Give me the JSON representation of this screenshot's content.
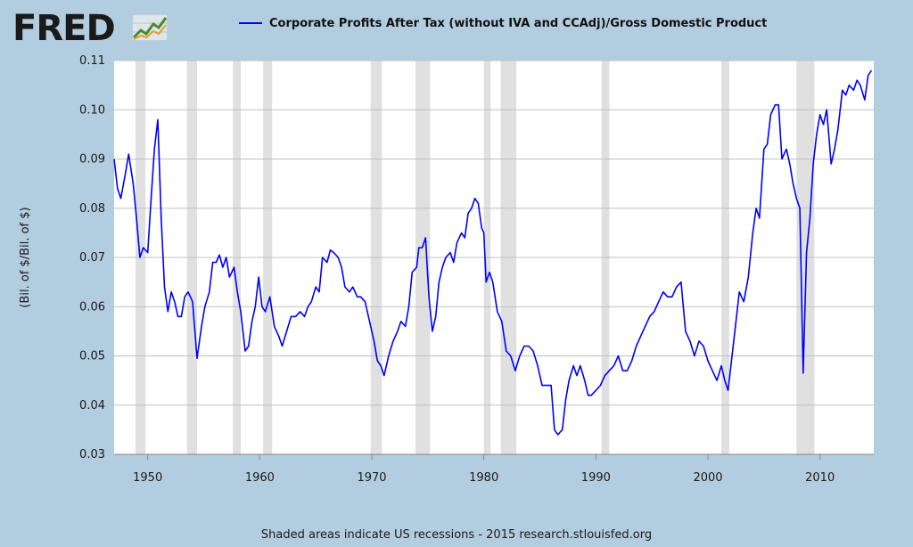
{
  "logo": {
    "text": "FRED",
    "icon": "fred-graph-icon"
  },
  "colors": {
    "background": "#b3cde0",
    "plot": "#ffffff",
    "line": "#0000ff",
    "recession": "#e0e0e0",
    "grid": "#c0c0c0"
  },
  "footer": {
    "text": "Shaded areas indicate US recessions - 2015 research.stlouisfed.org"
  },
  "chart_data": {
    "type": "line",
    "title": "",
    "xlabel": "",
    "ylabel": "(Bil. of $/Bil. of $)",
    "xlim": [
      1947,
      2014.8
    ],
    "ylim": [
      0.03,
      0.11
    ],
    "grid": true,
    "legend_position": "top",
    "x_ticks": [
      1950,
      1960,
      1970,
      1980,
      1990,
      2000,
      2010
    ],
    "y_ticks": [
      0.03,
      0.04,
      0.05,
      0.06,
      0.07,
      0.08,
      0.09,
      0.1,
      0.11
    ],
    "y_tick_labels": [
      "0.03",
      "0.04",
      "0.05",
      "0.06",
      "0.07",
      "0.08",
      "0.09",
      "0.10",
      "0.11"
    ],
    "recessions": [
      [
        1948.9,
        1949.8
      ],
      [
        1953.5,
        1954.4
      ],
      [
        1957.6,
        1958.3
      ],
      [
        1960.3,
        1961.1
      ],
      [
        1969.9,
        1970.9
      ],
      [
        1973.9,
        1975.2
      ],
      [
        1980.0,
        1980.6
      ],
      [
        1981.5,
        1982.9
      ],
      [
        1990.5,
        1991.2
      ],
      [
        2001.2,
        2001.9
      ],
      [
        2007.9,
        2009.5
      ]
    ],
    "series": [
      {
        "name": "Corporate Profits After Tax (without IVA and CCAdj)/Gross Domestic Product",
        "color": "#0000ff",
        "x": [
          1947,
          1947.3,
          1947.6,
          1948.0,
          1948.3,
          1948.7,
          1949.0,
          1949.3,
          1949.6,
          1950.0,
          1950.3,
          1950.6,
          1950.9,
          1951.2,
          1951.5,
          1951.8,
          1952.1,
          1952.4,
          1952.7,
          1953.0,
          1953.3,
          1953.6,
          1953.8,
          1954.0,
          1954.4,
          1954.8,
          1955.1,
          1955.5,
          1955.8,
          1956.1,
          1956.4,
          1956.7,
          1957.0,
          1957.3,
          1957.7,
          1958.0,
          1958.3,
          1958.7,
          1959.0,
          1959.3,
          1959.6,
          1959.9,
          1960.2,
          1960.5,
          1960.9,
          1961.3,
          1961.7,
          1962.0,
          1962.4,
          1962.8,
          1963.2,
          1963.6,
          1964.0,
          1964.3,
          1964.6,
          1965.0,
          1965.3,
          1965.6,
          1966.0,
          1966.3,
          1966.6,
          1967.0,
          1967.3,
          1967.6,
          1968.0,
          1968.3,
          1968.7,
          1969.0,
          1969.4,
          1969.8,
          1970.2,
          1970.5,
          1970.8,
          1971.1,
          1971.5,
          1971.9,
          1972.3,
          1972.6,
          1973.0,
          1973.3,
          1973.6,
          1974.0,
          1974.2,
          1974.5,
          1974.8,
          1975.1,
          1975.4,
          1975.7,
          1976.0,
          1976.3,
          1976.6,
          1977.0,
          1977.3,
          1977.6,
          1978.0,
          1978.3,
          1978.6,
          1978.9,
          1979.2,
          1979.5,
          1979.8,
          1980.0,
          1980.2,
          1980.5,
          1980.8,
          1981.2,
          1981.6,
          1982.0,
          1982.4,
          1982.8,
          1983.2,
          1983.6,
          1984.0,
          1984.4,
          1984.8,
          1985.2,
          1985.6,
          1986.0,
          1986.3,
          1986.6,
          1987.0,
          1987.3,
          1987.6,
          1988.0,
          1988.3,
          1988.6,
          1989.0,
          1989.3,
          1989.6,
          1990.0,
          1990.4,
          1990.8,
          1991.2,
          1991.6,
          1992.0,
          1992.4,
          1992.8,
          1993.2,
          1993.6,
          1994.0,
          1994.4,
          1994.8,
          1995.2,
          1995.6,
          1996.0,
          1996.4,
          1996.8,
          1997.2,
          1997.6,
          1998.0,
          1998.4,
          1998.8,
          1999.2,
          1999.6,
          2000.0,
          2000.4,
          2000.8,
          2001.2,
          2001.5,
          2001.8,
          2002.1,
          2002.4,
          2002.8,
          2003.2,
          2003.6,
          2004.0,
          2004.3,
          2004.6,
          2005.0,
          2005.3,
          2005.6,
          2006.0,
          2006.3,
          2006.6,
          2007.0,
          2007.3,
          2007.6,
          2007.9,
          2008.2,
          2008.5,
          2008.8,
          2009.1,
          2009.4,
          2009.7,
          2010.0,
          2010.3,
          2010.6,
          2011.0,
          2011.3,
          2011.6,
          2012.0,
          2012.3,
          2012.6,
          2013.0,
          2013.3,
          2013.6,
          2014.0,
          2014.3,
          2014.6
        ],
        "values": [
          0.09,
          0.084,
          0.082,
          0.087,
          0.091,
          0.085,
          0.078,
          0.07,
          0.072,
          0.071,
          0.082,
          0.092,
          0.098,
          0.078,
          0.064,
          0.059,
          0.063,
          0.061,
          0.058,
          0.058,
          0.062,
          0.063,
          0.062,
          0.061,
          0.0495,
          0.056,
          0.06,
          0.063,
          0.069,
          0.069,
          0.0705,
          0.068,
          0.07,
          0.066,
          0.068,
          0.063,
          0.059,
          0.051,
          0.052,
          0.057,
          0.06,
          0.066,
          0.06,
          0.059,
          0.062,
          0.056,
          0.054,
          0.052,
          0.055,
          0.058,
          0.058,
          0.059,
          0.058,
          0.06,
          0.061,
          0.064,
          0.063,
          0.07,
          0.069,
          0.0715,
          0.071,
          0.07,
          0.068,
          0.064,
          0.063,
          0.064,
          0.062,
          0.062,
          0.061,
          0.057,
          0.053,
          0.049,
          0.048,
          0.046,
          0.05,
          0.053,
          0.055,
          0.057,
          0.056,
          0.06,
          0.067,
          0.068,
          0.072,
          0.072,
          0.074,
          0.062,
          0.055,
          0.058,
          0.065,
          0.068,
          0.07,
          0.071,
          0.069,
          0.073,
          0.075,
          0.074,
          0.079,
          0.08,
          0.082,
          0.081,
          0.076,
          0.075,
          0.065,
          0.067,
          0.065,
          0.059,
          0.057,
          0.051,
          0.05,
          0.047,
          0.05,
          0.052,
          0.052,
          0.051,
          0.048,
          0.044,
          0.044,
          0.044,
          0.035,
          0.034,
          0.035,
          0.041,
          0.045,
          0.048,
          0.046,
          0.048,
          0.045,
          0.042,
          0.042,
          0.043,
          0.044,
          0.046,
          0.047,
          0.048,
          0.05,
          0.047,
          0.047,
          0.049,
          0.052,
          0.054,
          0.056,
          0.058,
          0.059,
          0.061,
          0.063,
          0.062,
          0.062,
          0.064,
          0.065,
          0.055,
          0.053,
          0.05,
          0.053,
          0.052,
          0.049,
          0.047,
          0.045,
          0.048,
          0.045,
          0.043,
          0.049,
          0.055,
          0.063,
          0.061,
          0.066,
          0.075,
          0.08,
          0.078,
          0.092,
          0.093,
          0.099,
          0.101,
          0.101,
          0.09,
          0.092,
          0.089,
          0.085,
          0.082,
          0.08,
          0.0465,
          0.071,
          0.078,
          0.089,
          0.095,
          0.099,
          0.097,
          0.1,
          0.089,
          0.092,
          0.096,
          0.104,
          0.103,
          0.105,
          0.104,
          0.106,
          0.105,
          0.102,
          0.107,
          0.108
        ]
      }
    ]
  }
}
